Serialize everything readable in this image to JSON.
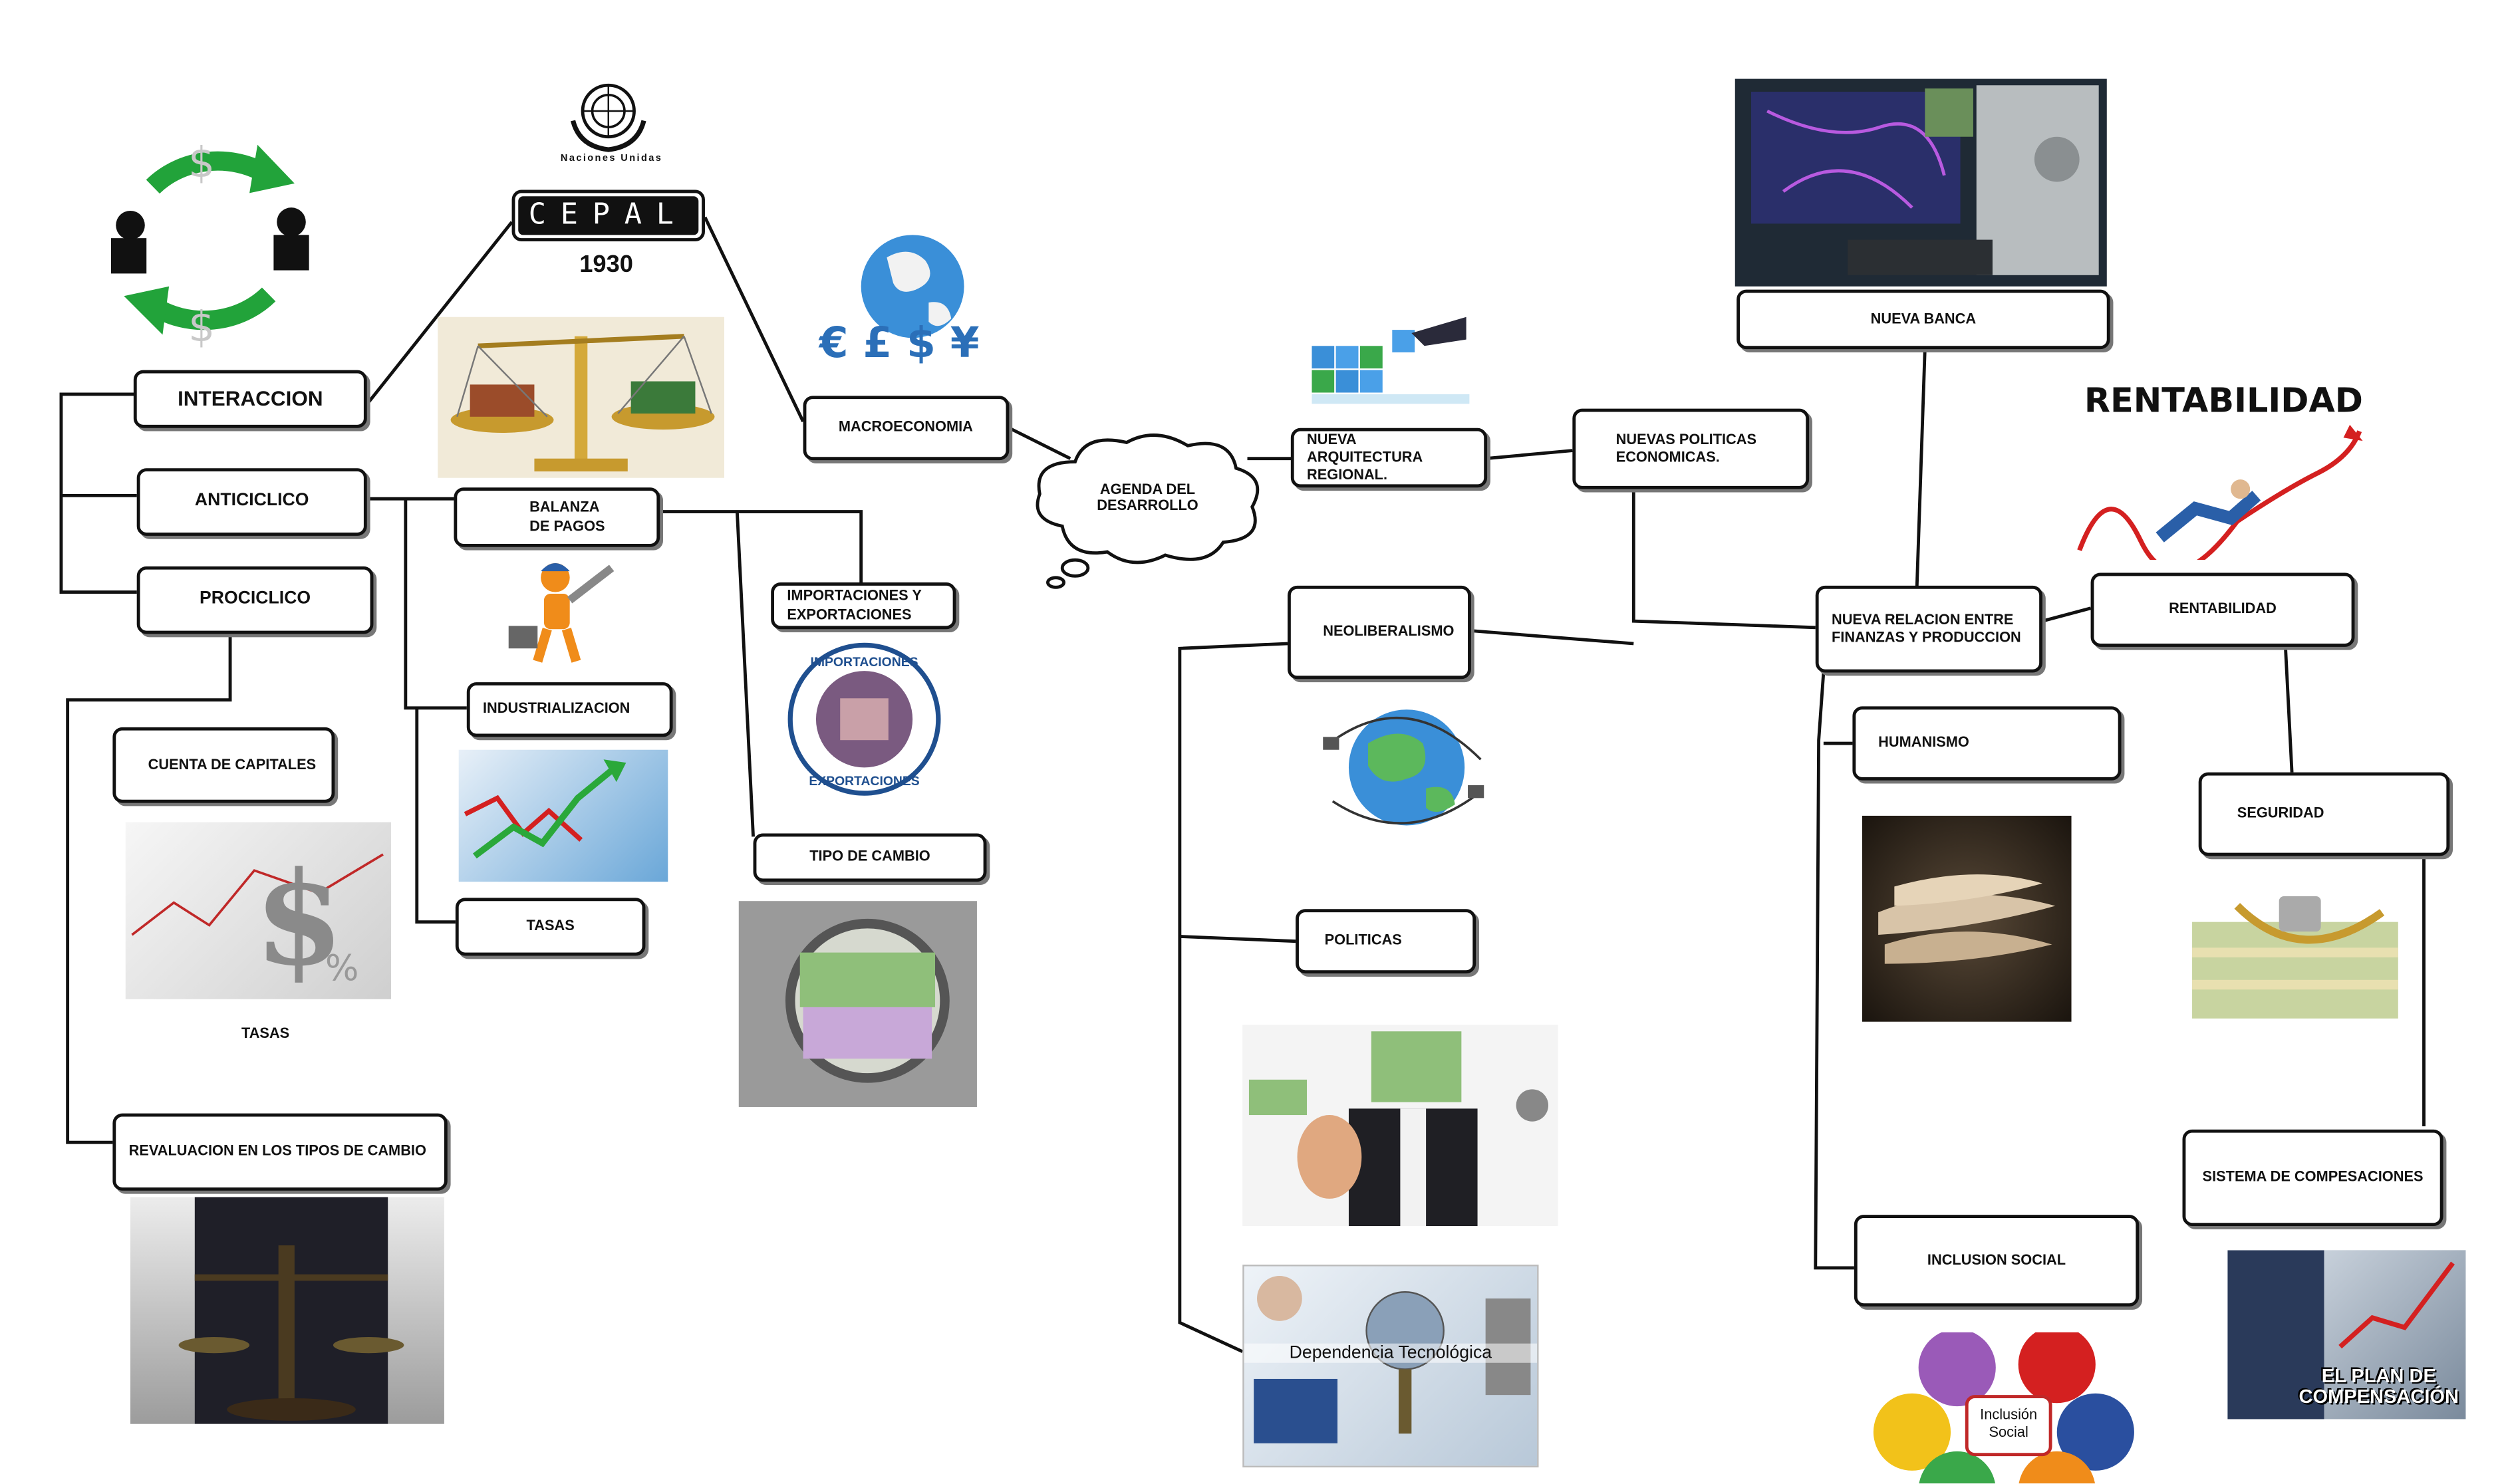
{
  "logo": {
    "org": "Naciones Unidas",
    "acronym": "CEPAL",
    "year": "1930"
  },
  "center": {
    "label": "AGENDA DEL DESARROLLO"
  },
  "nodes": {
    "interaccion": "INTERACCION",
    "anticiclico": "ANTICICLICO",
    "prociclico": "PROCICLICO",
    "balanza_pagos": "BALANZA\nDE PAGOS",
    "macroeconomia": "MACROECONOMIA",
    "importaciones_exportaciones": "IMPORTACIONES Y\nEXPORTACIONES",
    "industrializacion": "INDUSTRIALIZACION",
    "tipo_cambio": "TIPO DE CAMBIO",
    "tasas": "TASAS",
    "cuenta_capitales": "CUENTA DE CAPITALES",
    "revaluacion": "REVALUACION EN LOS TIPOS DE CAMBIO",
    "nueva_arquitectura": "NUEVA ARQUITECTURA\nREGIONAL.",
    "nuevas_politicas": "NUEVAS POLITICAS\nECONOMICAS.",
    "neoliberalismo": "NEOLIBERALISMO",
    "politicas": "POLITICAS",
    "nueva_banca": "NUEVA BANCA",
    "nueva_relacion": "NUEVA RELACION ENTRE\nFINANZAS Y PRODUCCION",
    "rentabilidad": "RENTABILIDAD",
    "humanismo": "HUMANISMO",
    "seguridad": "SEGURIDAD",
    "sistema_compensaciones": "SISTEMA DE COMPESACIONES",
    "inclusion_social": "INCLUSION SOCIAL"
  },
  "captions": {
    "tasas_img": "TASAS",
    "rentabilidad_title": "RENTABILIDAD",
    "importaciones_badge_top": "IMPORTACIONES",
    "importaciones_badge_bottom": "EXPORTACIONES",
    "dependencia": "Dependencia Tecnológica",
    "plan_line1": "EL PLAN DE",
    "plan_line2": "COMPENSACIÓN",
    "inclusion_line1": "Inclusión",
    "inclusion_line2": "Social",
    "currency_signs": "$",
    "globe_signs": "€ £ $ ¥"
  },
  "colors": {
    "line": "#111111",
    "cycle_arrow": "#22a33a",
    "globe": "#3a8fd8",
    "land": "#5cb85c",
    "money": "#8fbf7a"
  }
}
